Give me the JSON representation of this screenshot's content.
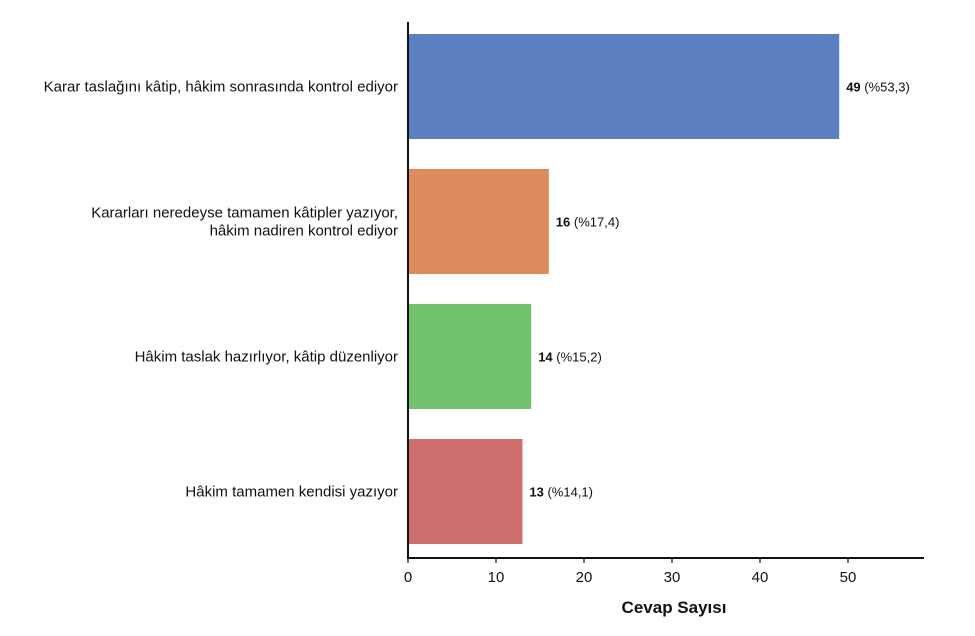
{
  "chart_data": {
    "type": "bar",
    "orientation": "horizontal",
    "categories": [
      [
        "Karar taslağını kâtip, hâkim sonrasında kontrol ediyor"
      ],
      [
        "Kararları neredeyse tamamen kâtipler yazıyor,",
        "hâkim nadiren kontrol ediyor"
      ],
      [
        "Hâkim taslak hazırlıyor, kâtip düzenliyor"
      ],
      [
        "Hâkim tamamen kendisi yazıyor"
      ]
    ],
    "values": [
      49,
      16,
      14,
      13
    ],
    "value_labels": [
      "49",
      "16",
      "14",
      "13"
    ],
    "percent_labels": [
      "(%53,3)",
      "(%17,4)",
      "(%15,2)",
      "(%14,1)"
    ],
    "colors": [
      "#5b7fc1",
      "#dd8b5c",
      "#72c16d",
      "#cc6e6e"
    ],
    "xlabel": "Cevap Sayısı",
    "ylabel": "",
    "xlim": [
      0,
      58
    ],
    "xticks": [
      0,
      10,
      20,
      30,
      40,
      50
    ],
    "grid": false
  }
}
